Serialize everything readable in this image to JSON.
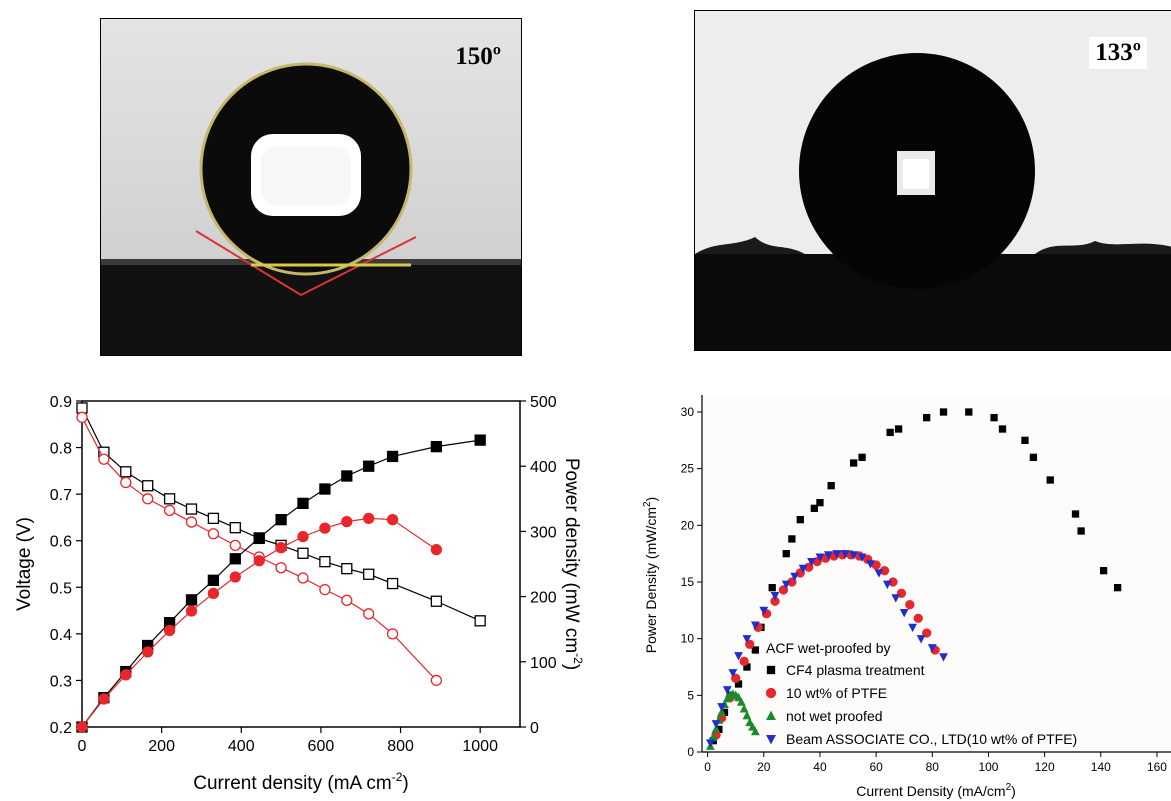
{
  "photos": {
    "left_angle": "150º",
    "right_angle": "133º"
  },
  "chart_data": [
    {
      "type": "line",
      "title": "",
      "xlabel": "Current density (mA cm",
      "xlabel_sup": "-2",
      "xlabel_end": ")",
      "ylabel": "Voltage (V)",
      "y2label": "Power density (mW cm",
      "y2label_sup": "-2",
      "y2label_end": ")",
      "xlim": [
        0,
        1100
      ],
      "ylim": [
        0.2,
        0.9
      ],
      "y2lim": [
        0,
        500
      ],
      "xticks": [
        0,
        200,
        400,
        600,
        800,
        1000
      ],
      "yticks": [
        0.2,
        0.3,
        0.4,
        0.5,
        0.6,
        0.7,
        0.8,
        0.9
      ],
      "y2ticks": [
        0,
        100,
        200,
        300,
        400,
        500
      ],
      "grid": false,
      "series": [
        {
          "axis": "left",
          "color": "#000000",
          "marker": "square-open",
          "x": [
            0,
            55,
            110,
            165,
            220,
            275,
            330,
            385,
            445,
            500,
            555,
            610,
            665,
            720,
            780,
            890,
            1000
          ],
          "y": [
            0.885,
            0.79,
            0.748,
            0.718,
            0.69,
            0.668,
            0.648,
            0.628,
            0.605,
            0.59,
            0.573,
            0.555,
            0.54,
            0.528,
            0.508,
            0.47,
            0.428
          ]
        },
        {
          "axis": "left",
          "color": "#e8272c",
          "marker": "circle-open",
          "x": [
            0,
            55,
            110,
            165,
            220,
            275,
            330,
            385,
            445,
            500,
            555,
            610,
            665,
            720,
            780,
            890
          ],
          "y": [
            0.865,
            0.775,
            0.725,
            0.69,
            0.665,
            0.64,
            0.615,
            0.59,
            0.565,
            0.542,
            0.52,
            0.495,
            0.472,
            0.443,
            0.4,
            0.3
          ]
        },
        {
          "axis": "right",
          "color": "#000000",
          "marker": "square-filled",
          "x": [
            0,
            55,
            110,
            165,
            220,
            275,
            330,
            385,
            445,
            500,
            555,
            610,
            665,
            720,
            780,
            890,
            1000
          ],
          "y": [
            0,
            45,
            85,
            125,
            160,
            195,
            225,
            258,
            290,
            318,
            343,
            365,
            385,
            400,
            415,
            430,
            440
          ]
        },
        {
          "axis": "right",
          "color": "#e8272c",
          "marker": "circle-filled",
          "x": [
            0,
            55,
            110,
            165,
            220,
            275,
            330,
            385,
            445,
            500,
            555,
            610,
            665,
            720,
            780,
            890
          ],
          "y": [
            0,
            43,
            80,
            115,
            148,
            178,
            205,
            230,
            255,
            275,
            292,
            305,
            315,
            320,
            318,
            272
          ]
        }
      ]
    },
    {
      "type": "scatter",
      "title": "",
      "xlabel": "Current Density (mA/cm",
      "xlabel_sup": "2",
      "xlabel_end": ")",
      "ylabel": "Power Density (mW/cm",
      "ylabel_sup": "2",
      "ylabel_end": ")",
      "xlim": [
        -2,
        165
      ],
      "ylim": [
        0,
        31.5
      ],
      "xticks": [
        0,
        20,
        40,
        60,
        80,
        100,
        120,
        140,
        160
      ],
      "yticks": [
        0,
        5,
        10,
        15,
        20,
        25,
        30
      ],
      "legend": {
        "title": "ACF wet-proofed by",
        "position": "bottom-left"
      },
      "series": [
        {
          "name": "CF4 plasma treatment",
          "color": "#000000",
          "marker": "square",
          "x": [
            2,
            4,
            6,
            8,
            11,
            14,
            17,
            19,
            23,
            28,
            30,
            33,
            38,
            40,
            44,
            52,
            55,
            65,
            68,
            78,
            84,
            93,
            102,
            105,
            113,
            116,
            122,
            131,
            133,
            141,
            146
          ],
          "y": [
            1,
            2,
            3.5,
            5,
            6,
            7.5,
            9,
            11,
            14.5,
            17.5,
            18.8,
            20.5,
            21.5,
            22,
            23.5,
            25.5,
            26,
            28.2,
            28.5,
            29.5,
            30,
            30,
            29.5,
            28.5,
            27.5,
            26,
            24,
            21,
            19.5,
            16,
            14.5
          ]
        },
        {
          "name": "10 wt% of PTFE",
          "color": "#e8272c",
          "marker": "circle",
          "x": [
            3,
            5,
            8,
            10,
            13,
            15,
            18,
            21,
            24,
            27,
            30,
            33,
            36,
            39,
            42,
            45,
            48,
            51,
            54,
            57,
            60,
            63,
            66,
            69,
            72,
            75,
            78,
            81
          ],
          "y": [
            1.5,
            3,
            4.8,
            6.5,
            8,
            9.5,
            11,
            12.2,
            13.3,
            14.3,
            15,
            15.8,
            16.3,
            16.8,
            17.1,
            17.3,
            17.4,
            17.4,
            17.3,
            17,
            16.5,
            16,
            15,
            14,
            13,
            11.8,
            10.5,
            9
          ]
        },
        {
          "name": "not wet proofed",
          "color": "#1a8a2a",
          "marker": "triangle-up",
          "x": [
            1,
            2,
            3,
            4,
            5,
            6,
            7,
            8,
            9,
            10,
            11,
            12,
            13,
            14,
            15,
            16,
            17
          ],
          "y": [
            0.5,
            1.3,
            2,
            2.8,
            3.5,
            4.2,
            4.7,
            5,
            5.1,
            5,
            4.8,
            4.4,
            3.8,
            3.2,
            2.6,
            2.2,
            1.8
          ]
        },
        {
          "name": "Beam ASSOCIATE CO., LTD(10 wt% of PTFE)",
          "color": "#1e2fd0",
          "marker": "triangle-down",
          "x": [
            1,
            3,
            5,
            7,
            9,
            11,
            14,
            17,
            20,
            24,
            28,
            31,
            34,
            37,
            40,
            43,
            46,
            49,
            52,
            55,
            58,
            61,
            64,
            67,
            70,
            73,
            76,
            80,
            84
          ],
          "y": [
            0.8,
            2.5,
            4,
            5.5,
            7,
            8.5,
            10,
            11.2,
            12.5,
            13.8,
            14.8,
            15.5,
            16.2,
            16.8,
            17.2,
            17.4,
            17.5,
            17.5,
            17.4,
            17.2,
            16.6,
            15.8,
            14.8,
            13.6,
            12.3,
            11,
            10,
            9.2,
            8.4
          ]
        }
      ]
    }
  ]
}
